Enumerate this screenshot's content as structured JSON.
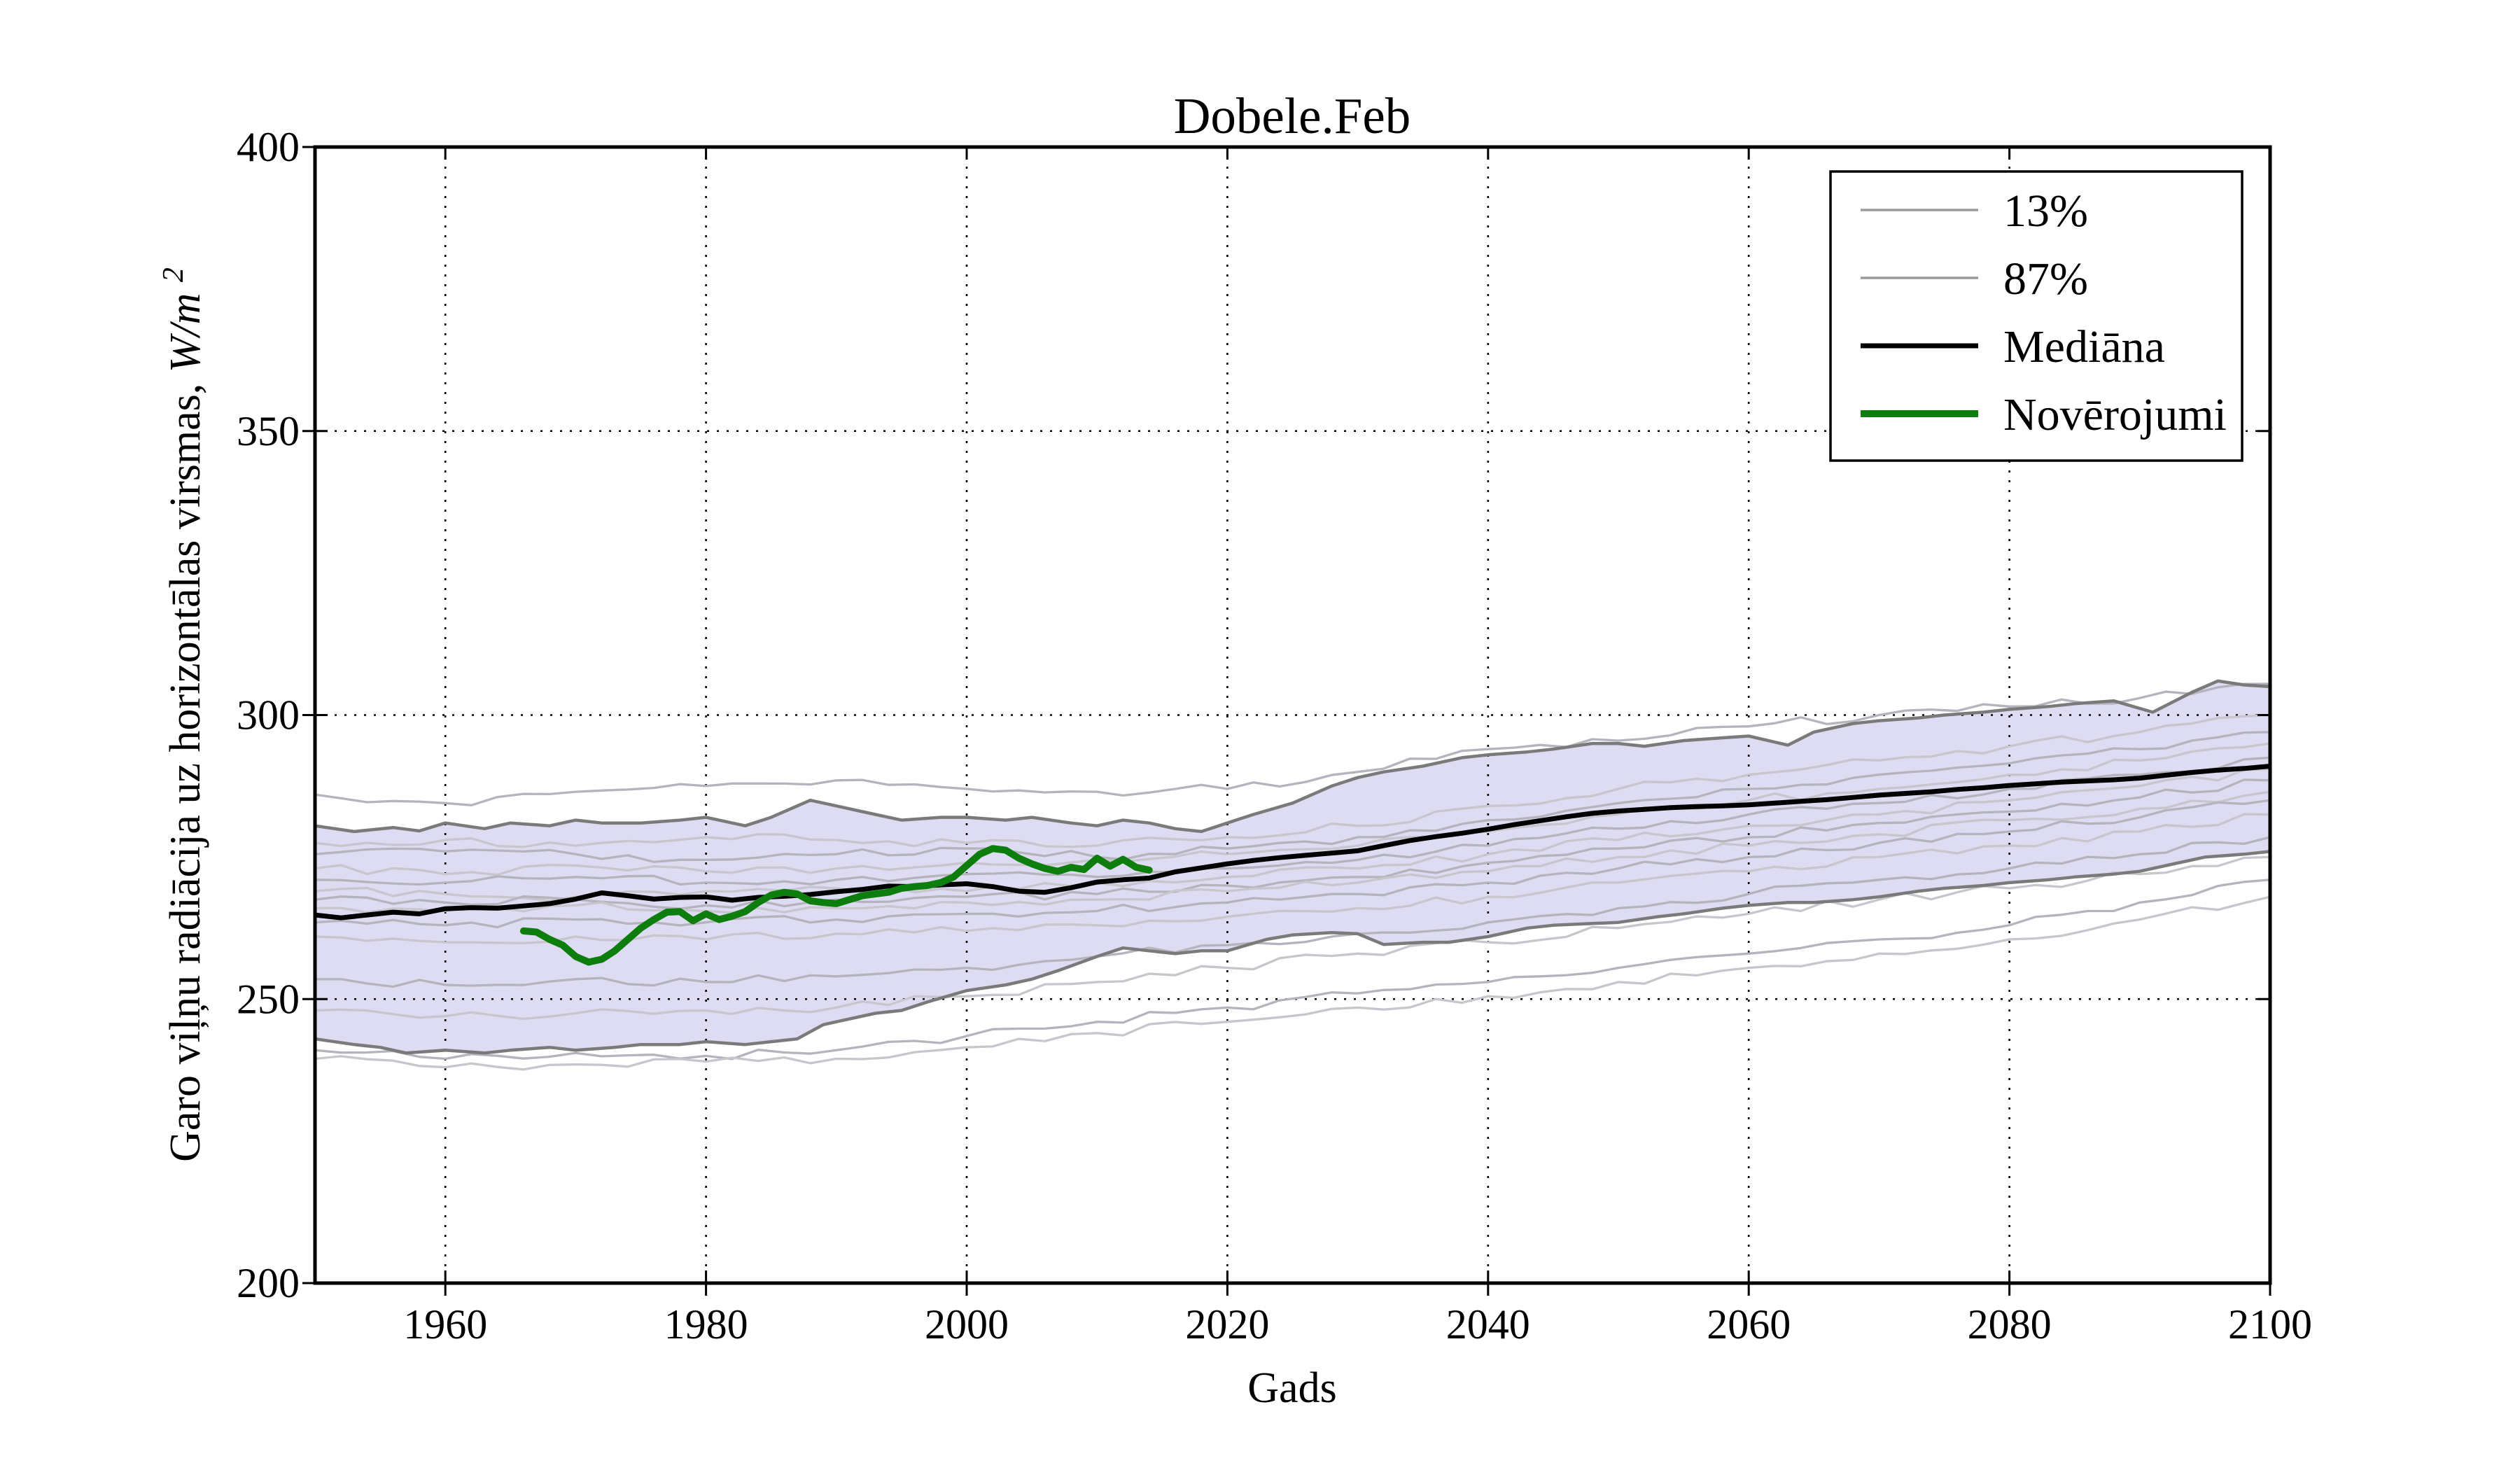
{
  "title": "Dobele.Feb",
  "axes": {
    "xlabel": "Gads",
    "ylabel_main": "Garo viļņu radiācija uz horizontālas virsmas, ",
    "ylabel_units": "W/m",
    "ylabel_exp": "2",
    "xlim": [
      1950,
      2100
    ],
    "ylim": [
      200,
      400
    ],
    "x_ticks": [
      1960,
      1980,
      2000,
      2020,
      2040,
      2060,
      2080,
      2100
    ],
    "y_ticks": [
      200,
      250,
      300,
      350,
      400
    ],
    "x_gridlines": [
      1960,
      1980,
      2000,
      2020,
      2040,
      2060,
      2080
    ],
    "y_gridlines": [
      250,
      300,
      350
    ]
  },
  "legend": {
    "items": [
      {
        "label": "13%",
        "color": "#999999",
        "lw": 3.5
      },
      {
        "label": "87%",
        "color": "#999999",
        "lw": 3.5
      },
      {
        "label": "Mediāna",
        "color": "#000000",
        "lw": 7
      },
      {
        "label": "Novērojumi",
        "color": "#0d7e0d",
        "lw": 10
      }
    ]
  },
  "colors": {
    "band_fill": "#dedcf2",
    "band_edge": "#7a7a7a",
    "ensemble": [
      "#b4b4bc",
      "#c6c6cc"
    ],
    "median": "#000000",
    "observations": "#0d7e0d",
    "grid": "#000000",
    "spine": "#000000",
    "legend_border": "#000000",
    "background": "#ffffff"
  },
  "chart_data": {
    "type": "line",
    "title": "Dobele.Feb",
    "xlabel": "Gads",
    "ylabel": "Garo viļņu radiācija uz horizontālas virsmas, W/m2",
    "xlim": [
      1950,
      2100
    ],
    "ylim": [
      200,
      400
    ],
    "grid": true,
    "legend_position": "upper right",
    "band": {
      "between": [
        "13%",
        "87%"
      ],
      "fill": "#dedcf2"
    },
    "series": [
      {
        "name": "13%",
        "role": "lower-percentile",
        "color": "#7a7a7a",
        "lw": 4.5,
        "x": [
          1950,
          1953,
          1955,
          1957,
          1960,
          1963,
          1965,
          1968,
          1970,
          1973,
          1975,
          1978,
          1980,
          1983,
          1985,
          1987,
          1989,
          1990,
          1993,
          1995,
          1997,
          2000,
          2003,
          2005,
          2007,
          2010,
          2012,
          2014,
          2016,
          2018,
          2020,
          2023,
          2025,
          2028,
          2030,
          2032,
          2035,
          2037,
          2040,
          2043,
          2045,
          2048,
          2050,
          2053,
          2055,
          2058,
          2060,
          2063,
          2065,
          2068,
          2070,
          2073,
          2075,
          2078,
          2080,
          2083,
          2085,
          2088,
          2090,
          2093,
          2095,
          2098,
          2100
        ],
        "y": [
          243,
          242,
          241.5,
          240.5,
          241,
          240.5,
          241,
          241.5,
          241,
          241.5,
          242,
          242,
          242.5,
          242,
          242.5,
          243,
          245.5,
          246,
          247.5,
          248,
          249.5,
          251.5,
          252.5,
          253.5,
          255,
          257.5,
          259,
          258.5,
          258,
          258.5,
          258.5,
          260.5,
          261.3,
          261.7,
          261.5,
          259.6,
          260,
          260,
          261,
          262.5,
          263,
          263.3,
          263.5,
          264.5,
          265,
          266,
          266.5,
          267,
          267,
          267.5,
          268,
          269,
          269.5,
          270,
          270.5,
          271,
          271.5,
          272,
          272.5,
          274,
          275,
          275.5,
          276
        ]
      },
      {
        "name": "87%",
        "role": "upper-percentile",
        "color": "#7a7a7a",
        "lw": 4.5,
        "x": [
          1950,
          1953,
          1956,
          1958,
          1960,
          1963,
          1965,
          1968,
          1970,
          1972,
          1975,
          1978,
          1980,
          1983,
          1985,
          1988,
          1990,
          1992,
          1995,
          1998,
          2000,
          2003,
          2005,
          2008,
          2010,
          2012,
          2014,
          2016,
          2018,
          2020,
          2022,
          2025,
          2028,
          2030,
          2032,
          2035,
          2038,
          2040,
          2043,
          2045,
          2048,
          2050,
          2052,
          2055,
          2058,
          2060,
          2063,
          2065,
          2068,
          2070,
          2073,
          2075,
          2078,
          2080,
          2083,
          2085,
          2088,
          2091,
          2094,
          2096,
          2098,
          2100
        ],
        "y": [
          280.5,
          279.5,
          280.2,
          279.6,
          281,
          280,
          281,
          280.5,
          281.5,
          281,
          281,
          281.5,
          282,
          280.5,
          282,
          285,
          284,
          283,
          281.5,
          282,
          282,
          281.5,
          282,
          281,
          280.5,
          281.5,
          281,
          280,
          279.5,
          281,
          282.5,
          284.5,
          287.5,
          289,
          290,
          291,
          292.5,
          293,
          293.5,
          294,
          295,
          295,
          294.5,
          295.5,
          296,
          296.3,
          294.7,
          297,
          298.5,
          299,
          299.5,
          300,
          300.5,
          301,
          301.5,
          302,
          302.5,
          300.5,
          304,
          306,
          305.3,
          305
        ]
      },
      {
        "name": "Mediāna",
        "role": "median",
        "color": "#000000",
        "lw": 7,
        "x_start": 1950,
        "x_step": 2,
        "values": [
          264.8,
          264.3,
          264.8,
          265.3,
          265.0,
          265.9,
          266.1,
          266.0,
          266.4,
          266.8,
          267.6,
          268.7,
          268.2,
          267.6,
          267.9,
          268.0,
          267.4,
          267.9,
          268.1,
          268.4,
          268.9,
          269.3,
          269.9,
          269.8,
          270.1,
          270.3,
          269.8,
          269.0,
          268.8,
          269.6,
          270.6,
          271.0,
          271.3,
          272.4,
          273.1,
          273.8,
          274.4,
          274.9,
          275.3,
          275.7,
          276.1,
          277.0,
          277.9,
          278.6,
          279.2,
          279.9,
          280.7,
          281.4,
          282.1,
          282.7,
          283.1,
          283.4,
          283.7,
          283.9,
          284.0,
          284.2,
          284.5,
          284.8,
          285.1,
          285.5,
          285.9,
          286.2,
          286.5,
          286.9,
          287.2,
          287.6,
          287.9,
          288.2,
          288.4,
          288.6,
          288.9,
          289.4,
          289.9,
          290.3,
          290.6,
          291.0
        ]
      },
      {
        "name": "Novērojumi",
        "role": "observations",
        "color": "#0d7e0d",
        "lw": 10,
        "x_start": 1966,
        "x_step": 1,
        "values": [
          262.0,
          261.8,
          260.5,
          259.5,
          257.5,
          256.5,
          257.0,
          258.5,
          260.5,
          262.5,
          264.0,
          265.3,
          265.4,
          263.8,
          265.0,
          264.0,
          264.6,
          265.4,
          267.0,
          268.3,
          268.8,
          268.5,
          267.3,
          267.0,
          266.8,
          267.5,
          268.2,
          268.5,
          268.8,
          269.5,
          269.8,
          270.0,
          270.5,
          271.5,
          273.5,
          275.5,
          276.5,
          276.2,
          274.8,
          273.8,
          273.0,
          272.5,
          273.2,
          272.8,
          274.8,
          273.4,
          274.6,
          273.2,
          272.7
        ]
      }
    ],
    "ensemble_members": {
      "years": [
        1950,
        1960,
        1970,
        1980,
        1990,
        2000,
        2010,
        2020,
        2030,
        2040,
        2050,
        2060,
        2070,
        2080,
        2090,
        2100
      ],
      "lines": [
        [
          286,
          284.5,
          286.5,
          287.5,
          288.5,
          287,
          286.5,
          287,
          290,
          294,
          295.5,
          298,
          300,
          301.5,
          303,
          305.5
        ],
        [
          277.5,
          278,
          277,
          278.5,
          278,
          277.5,
          277,
          278.5,
          280.5,
          284,
          287,
          289.5,
          292,
          294.5,
          297,
          300
        ],
        [
          275.5,
          276,
          275.5,
          274.5,
          275.5,
          276.5,
          275,
          276.5,
          278.5,
          281.5,
          284.5,
          287,
          289.5,
          291.5,
          294,
          297
        ],
        [
          273,
          272,
          273.5,
          272.5,
          273,
          274,
          274.5,
          275.5,
          277,
          279.5,
          282.5,
          285,
          287,
          289.5,
          292,
          295
        ],
        [
          271,
          270.5,
          271.5,
          270.5,
          271,
          272,
          271.5,
          273,
          274.5,
          277,
          280,
          282.5,
          284.5,
          287,
          289.5,
          292.5
        ],
        [
          269,
          268.5,
          268,
          269,
          269.5,
          269,
          270.5,
          271.5,
          273,
          275.5,
          278,
          280.5,
          282.5,
          285,
          287.5,
          290.5
        ],
        [
          267.5,
          267,
          267.5,
          266.5,
          267.5,
          268,
          268.5,
          270,
          271.5,
          274,
          276.5,
          278.5,
          281,
          283,
          285.5,
          288.5
        ],
        [
          266,
          265.5,
          266.5,
          265.5,
          266,
          267,
          267.5,
          269,
          270.5,
          272.5,
          275,
          277,
          279,
          281.5,
          283.5,
          286.5
        ],
        [
          263.5,
          263,
          264,
          263.5,
          264,
          265,
          265.5,
          267,
          268.5,
          270.5,
          273,
          275,
          277.5,
          279.5,
          282,
          285
        ],
        [
          261,
          260,
          261,
          260.5,
          261.5,
          262,
          263,
          264.5,
          266,
          268,
          270.5,
          272.5,
          275,
          277,
          279.5,
          282.5
        ],
        [
          253.5,
          252.5,
          253.5,
          253,
          254,
          255.5,
          257.5,
          259.5,
          261.5,
          263.5,
          266,
          268.5,
          271,
          273,
          275.5,
          278.5
        ],
        [
          248,
          247,
          247.5,
          248,
          248.5,
          250.5,
          253,
          255.5,
          258,
          260,
          262.5,
          265,
          267.5,
          269.5,
          272,
          275
        ],
        [
          241,
          239.5,
          240.5,
          240,
          241,
          243.5,
          246,
          248.5,
          251,
          253,
          255.5,
          258,
          260.5,
          263,
          267,
          271
        ],
        [
          239.5,
          238,
          238.5,
          239,
          239.5,
          241.5,
          244,
          246,
          248.5,
          250.5,
          253,
          255.5,
          258,
          260.5,
          264,
          268
        ]
      ]
    }
  }
}
